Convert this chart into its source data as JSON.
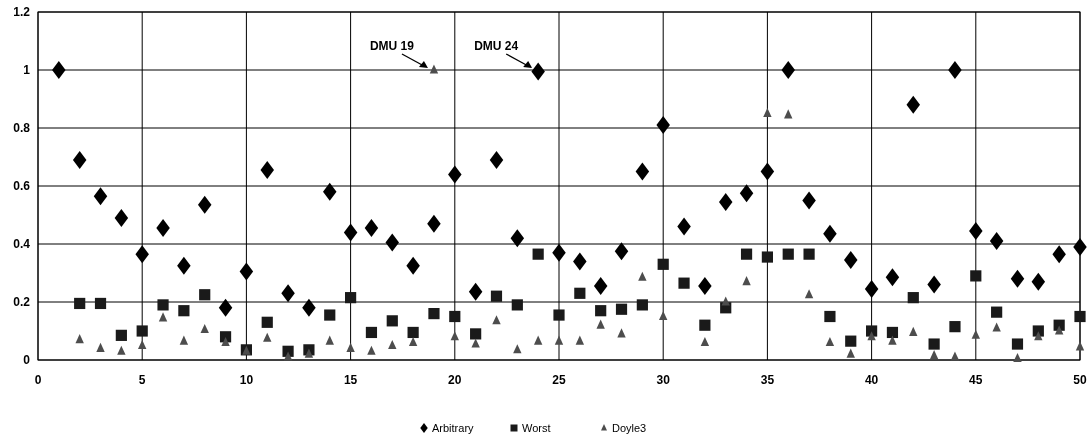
{
  "chart_data": {
    "type": "scatter",
    "x": [
      1,
      2,
      3,
      4,
      5,
      6,
      7,
      8,
      9,
      10,
      11,
      12,
      13,
      14,
      15,
      16,
      17,
      18,
      19,
      20,
      21,
      22,
      23,
      24,
      25,
      26,
      27,
      28,
      29,
      30,
      31,
      32,
      33,
      34,
      35,
      36,
      37,
      38,
      39,
      40,
      41,
      42,
      43,
      44,
      45,
      46,
      47,
      48,
      49,
      50
    ],
    "xlim": [
      0,
      50
    ],
    "xticks": [
      0,
      5,
      10,
      15,
      20,
      25,
      30,
      35,
      40,
      45,
      50
    ],
    "ylim": [
      0,
      1.2
    ],
    "yticks": [
      0,
      0.2,
      0.4,
      0.6,
      0.8,
      1,
      1.2
    ],
    "grid": true,
    "legend": "bottom",
    "series": [
      {
        "name": "Arbitrary",
        "color": "#000000",
        "marker": "diamond",
        "values": [
          1.0,
          0.69,
          0.565,
          0.49,
          0.365,
          0.455,
          0.325,
          0.535,
          0.18,
          0.305,
          0.655,
          0.23,
          0.18,
          0.58,
          0.44,
          0.455,
          0.405,
          0.325,
          0.47,
          0.64,
          0.235,
          0.69,
          0.42,
          0.995,
          0.37,
          0.34,
          0.255,
          0.375,
          0.65,
          0.81,
          0.46,
          0.255,
          0.545,
          0.575,
          0.65,
          1.0,
          0.55,
          0.435,
          0.345,
          0.245,
          0.285,
          0.88,
          0.26,
          1.0,
          0.445,
          0.41,
          0.28,
          0.27,
          0.365,
          0.39
        ]
      },
      {
        "name": "Worst",
        "color": "#1a1a1a",
        "marker": "square",
        "values": [
          null,
          0.195,
          0.195,
          0.085,
          0.1,
          0.19,
          0.17,
          0.225,
          0.08,
          0.035,
          0.13,
          0.03,
          0.035,
          0.155,
          0.215,
          0.095,
          0.135,
          0.095,
          0.16,
          0.15,
          0.09,
          0.22,
          0.19,
          0.365,
          0.155,
          0.23,
          0.17,
          0.175,
          0.19,
          0.33,
          0.265,
          0.12,
          0.18,
          0.365,
          0.355,
          0.365,
          0.365,
          0.15,
          0.065,
          0.1,
          0.095,
          0.215,
          0.055,
          0.115,
          0.29,
          0.165,
          0.055,
          0.1,
          0.12,
          0.15
        ]
      },
      {
        "name": "Doyle3",
        "color": "#4d4d4d",
        "marker": "triangle",
        "values": [
          null,
          0.07,
          0.04,
          0.03,
          0.05,
          0.145,
          0.065,
          0.105,
          0.06,
          0.03,
          0.075,
          0.01,
          0.02,
          0.065,
          0.04,
          0.03,
          0.05,
          0.06,
          1.0,
          0.08,
          0.055,
          0.135,
          0.035,
          0.065,
          0.065,
          0.065,
          0.12,
          0.09,
          0.285,
          0.15,
          null,
          0.06,
          0.2,
          0.27,
          0.85,
          0.845,
          0.225,
          0.06,
          0.02,
          0.08,
          0.065,
          0.095,
          0.015,
          0.01,
          0.085,
          0.11,
          0.005,
          0.08,
          0.1,
          0.045
        ]
      }
    ],
    "annotations": [
      {
        "text": "DMU 19",
        "x": 19,
        "y": 1
      },
      {
        "text": "DMU 24",
        "x": 24,
        "y": 1
      }
    ]
  }
}
